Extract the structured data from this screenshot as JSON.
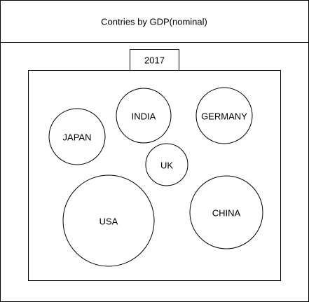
{
  "diagram": {
    "title": "Contries by GDP(nominal)",
    "year": "2017",
    "countries": {
      "japan": "JAPAN",
      "india": "INDIA",
      "germany": "GERMANY",
      "uk": "UK",
      "usa": "USA",
      "china": "CHINA"
    }
  }
}
